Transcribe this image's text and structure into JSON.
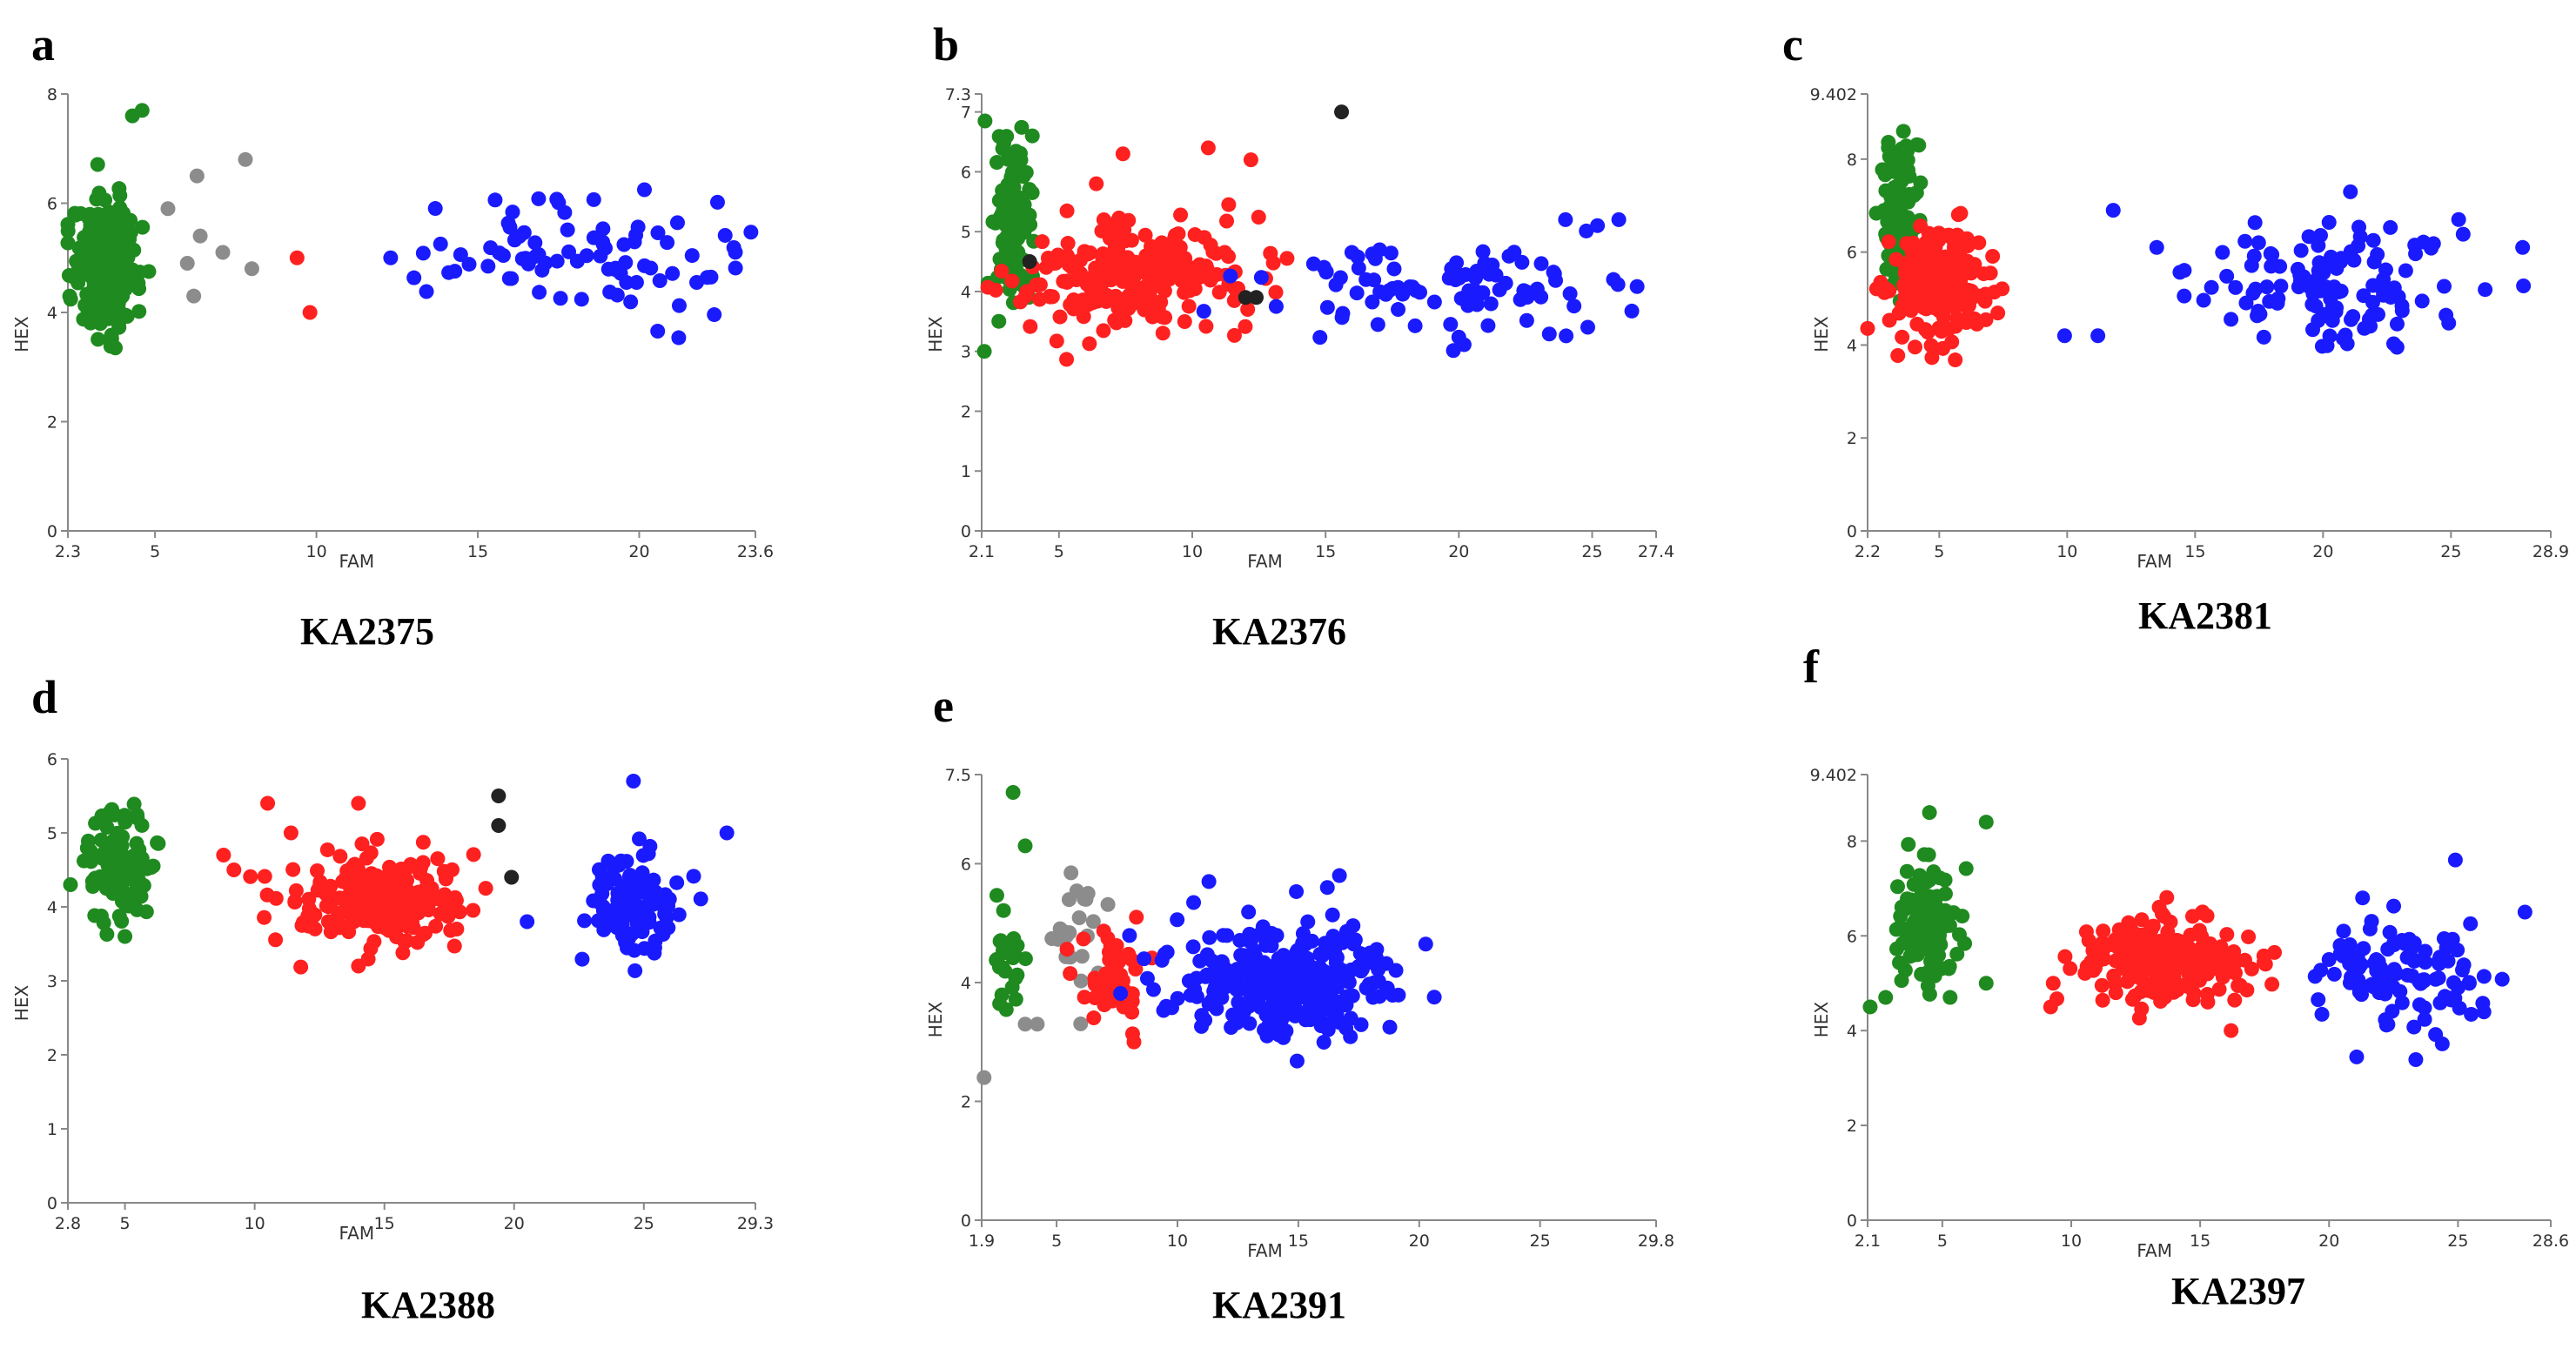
{
  "colors": {
    "green": "#1f8a1f",
    "red": "#ff2020",
    "blue": "#1a1aff",
    "gray": "#8c8c8c",
    "black": "#222222"
  },
  "panels": [
    {
      "letter": "a",
      "caption": "KA2375"
    },
    {
      "letter": "b",
      "caption": "KA2376"
    },
    {
      "letter": "c",
      "caption": "KA2381"
    },
    {
      "letter": "d",
      "caption": "KA2388"
    },
    {
      "letter": "e",
      "caption": "KA2391"
    },
    {
      "letter": "f",
      "caption": "KA2397"
    }
  ],
  "chart_data": [
    {
      "type": "scatter",
      "title": "KA2375",
      "xlabel": "FAM",
      "ylabel": "HEX",
      "xlim": [
        2.3,
        23.6
      ],
      "ylim": [
        0,
        8
      ],
      "xticks": [
        "2.3",
        "5",
        "10",
        "15",
        "20",
        "23.6"
      ],
      "yticks": [
        "0",
        "2",
        "4",
        "6",
        "8"
      ],
      "clusters": [
        {
          "name": "green",
          "color": "green",
          "n": 260,
          "cx": 3.5,
          "cy": 4.9,
          "sx": 0.5,
          "sy": 0.6
        },
        {
          "name": "blue",
          "color": "blue",
          "n": 85,
          "cx": 18.0,
          "cy": 5.0,
          "sx": 2.7,
          "sy": 0.55
        }
      ],
      "points": [
        {
          "x": 4.6,
          "y": 7.7,
          "c": "green"
        },
        {
          "x": 4.3,
          "y": 7.6,
          "c": "green"
        },
        {
          "x": 5.4,
          "y": 5.9,
          "c": "gray"
        },
        {
          "x": 6.3,
          "y": 6.5,
          "c": "gray"
        },
        {
          "x": 7.8,
          "y": 6.8,
          "c": "gray"
        },
        {
          "x": 6.4,
          "y": 5.4,
          "c": "gray"
        },
        {
          "x": 7.1,
          "y": 5.1,
          "c": "gray"
        },
        {
          "x": 6.0,
          "y": 4.9,
          "c": "gray"
        },
        {
          "x": 8.0,
          "y": 4.8,
          "c": "gray"
        },
        {
          "x": 6.2,
          "y": 4.3,
          "c": "gray"
        },
        {
          "x": 9.4,
          "y": 5.0,
          "c": "red"
        },
        {
          "x": 9.8,
          "y": 4.0,
          "c": "red"
        },
        {
          "x": 12.3,
          "y": 5.0,
          "c": "blue"
        }
      ]
    },
    {
      "type": "scatter",
      "title": "KA2376",
      "xlabel": "FAM",
      "ylabel": "HEX",
      "xlim": [
        2.1,
        27.4
      ],
      "ylim": [
        0,
        7.3
      ],
      "xticks": [
        "2.1",
        "5",
        "10",
        "15",
        "20",
        "25",
        "27.4"
      ],
      "yticks": [
        "0",
        "1",
        "2",
        "3",
        "4",
        "5",
        "6",
        "7",
        "7.3"
      ],
      "clusters": [
        {
          "name": "green",
          "color": "green",
          "n": 110,
          "cx": 3.2,
          "cy": 5.0,
          "sx": 0.35,
          "sy": 0.7
        },
        {
          "name": "red",
          "color": "red",
          "n": 270,
          "cx": 7.8,
          "cy": 4.3,
          "sx": 2.0,
          "sy": 0.45
        },
        {
          "name": "blue",
          "color": "blue",
          "n": 95,
          "cx": 19.0,
          "cy": 4.0,
          "sx": 3.5,
          "sy": 0.45
        }
      ],
      "points": [
        {
          "x": 2.2,
          "y": 3.0,
          "c": "green"
        },
        {
          "x": 4.0,
          "y": 6.6,
          "c": "green"
        },
        {
          "x": 3.9,
          "y": 4.5,
          "c": "black"
        },
        {
          "x": 12.0,
          "y": 3.9,
          "c": "black"
        },
        {
          "x": 12.4,
          "y": 3.9,
          "c": "black"
        },
        {
          "x": 15.6,
          "y": 7.0,
          "c": "black"
        },
        {
          "x": 7.4,
          "y": 6.3,
          "c": "red"
        },
        {
          "x": 10.6,
          "y": 6.4,
          "c": "red"
        },
        {
          "x": 12.2,
          "y": 6.2,
          "c": "red"
        },
        {
          "x": 6.4,
          "y": 5.8,
          "c": "red"
        },
        {
          "x": 26.0,
          "y": 5.2,
          "c": "blue"
        },
        {
          "x": 25.2,
          "y": 5.1,
          "c": "blue"
        },
        {
          "x": 24.0,
          "y": 5.2,
          "c": "blue"
        },
        {
          "x": 25.8,
          "y": 4.2,
          "c": "blue"
        }
      ]
    },
    {
      "type": "scatter",
      "title": "KA2381",
      "xlabel": "FAM",
      "ylabel": "HEX",
      "xlim": [
        2.2,
        28.9
      ],
      "ylim": [
        0,
        9.402
      ],
      "xticks": [
        "2.2",
        "5",
        "10",
        "15",
        "20",
        "25",
        "28.9"
      ],
      "yticks": [
        "0",
        "2",
        "4",
        "6",
        "8",
        "9.402"
      ],
      "clusters": [
        {
          "name": "green",
          "color": "green",
          "n": 110,
          "cx": 3.4,
          "cy": 6.8,
          "sx": 0.35,
          "sy": 0.8
        },
        {
          "name": "red",
          "color": "red",
          "n": 220,
          "cx": 5.0,
          "cy": 5.3,
          "sx": 1.0,
          "sy": 0.6
        },
        {
          "name": "blue",
          "color": "blue",
          "n": 120,
          "cx": 20.0,
          "cy": 5.2,
          "sx": 2.8,
          "sy": 0.7
        }
      ],
      "points": [
        {
          "x": 3.6,
          "y": 8.6,
          "c": "green"
        },
        {
          "x": 4.2,
          "y": 8.3,
          "c": "green"
        },
        {
          "x": 11.8,
          "y": 6.9,
          "c": "blue"
        },
        {
          "x": 25.3,
          "y": 6.7,
          "c": "blue"
        },
        {
          "x": 27.8,
          "y": 6.1,
          "c": "blue"
        },
        {
          "x": 9.9,
          "y": 4.2,
          "c": "blue"
        },
        {
          "x": 11.2,
          "y": 4.2,
          "c": "blue"
        },
        {
          "x": 13.5,
          "y": 6.1,
          "c": "blue"
        }
      ]
    },
    {
      "type": "scatter",
      "title": "KA2388",
      "xlabel": "FAM",
      "ylabel": "HEX",
      "xlim": [
        2.8,
        29.3
      ],
      "ylim": [
        0,
        6
      ],
      "xticks": [
        "2.8",
        "5",
        "10",
        "15",
        "20",
        "25",
        "29.3"
      ],
      "yticks": [
        "0",
        "1",
        "2",
        "3",
        "4",
        "5",
        "6"
      ],
      "clusters": [
        {
          "name": "green",
          "color": "green",
          "n": 110,
          "cx": 4.8,
          "cy": 4.55,
          "sx": 0.7,
          "sy": 0.35
        },
        {
          "name": "red",
          "color": "red",
          "n": 230,
          "cx": 15.0,
          "cy": 4.15,
          "sx": 1.6,
          "sy": 0.3
        },
        {
          "name": "blue",
          "color": "blue",
          "n": 110,
          "cx": 24.7,
          "cy": 4.05,
          "sx": 0.9,
          "sy": 0.35
        }
      ],
      "points": [
        {
          "x": 2.9,
          "y": 4.3,
          "c": "green"
        },
        {
          "x": 5.0,
          "y": 3.6,
          "c": "green"
        },
        {
          "x": 8.8,
          "y": 4.7,
          "c": "red"
        },
        {
          "x": 9.2,
          "y": 4.5,
          "c": "red"
        },
        {
          "x": 10.5,
          "y": 5.4,
          "c": "red"
        },
        {
          "x": 11.4,
          "y": 5.0,
          "c": "red"
        },
        {
          "x": 14.0,
          "y": 5.4,
          "c": "red"
        },
        {
          "x": 14.0,
          "y": 3.2,
          "c": "red"
        },
        {
          "x": 19.4,
          "y": 5.5,
          "c": "black"
        },
        {
          "x": 19.4,
          "y": 5.1,
          "c": "black"
        },
        {
          "x": 19.9,
          "y": 4.4,
          "c": "black"
        },
        {
          "x": 20.5,
          "y": 3.8,
          "c": "blue"
        },
        {
          "x": 24.6,
          "y": 5.7,
          "c": "blue"
        },
        {
          "x": 28.2,
          "y": 5.0,
          "c": "blue"
        }
      ]
    },
    {
      "type": "scatter",
      "title": "KA2391",
      "xlabel": "FAM",
      "ylabel": "HEX",
      "xlim": [
        1.9,
        29.8
      ],
      "ylim": [
        0,
        7.5
      ],
      "xticks": [
        "1.9",
        "5",
        "10",
        "15",
        "20",
        "25",
        "29.8"
      ],
      "yticks": [
        "0",
        "2",
        "4",
        "6",
        "7.5"
      ],
      "clusters": [
        {
          "name": "green",
          "color": "green",
          "n": 25,
          "cx": 3.1,
          "cy": 4.4,
          "sx": 0.4,
          "sy": 0.35
        },
        {
          "name": "gray",
          "color": "gray",
          "n": 22,
          "cx": 5.7,
          "cy": 4.6,
          "sx": 0.6,
          "sy": 0.45
        },
        {
          "name": "red",
          "color": "red",
          "n": 45,
          "cx": 7.3,
          "cy": 4.0,
          "sx": 0.7,
          "sy": 0.45
        },
        {
          "name": "blue",
          "color": "blue",
          "n": 330,
          "cx": 14.5,
          "cy": 4.0,
          "sx": 2.3,
          "sy": 0.45
        }
      ],
      "points": [
        {
          "x": 3.2,
          "y": 7.2,
          "c": "green"
        },
        {
          "x": 3.7,
          "y": 6.3,
          "c": "green"
        },
        {
          "x": 2.0,
          "y": 2.4,
          "c": "gray"
        },
        {
          "x": 3.7,
          "y": 3.3,
          "c": "gray"
        },
        {
          "x": 4.2,
          "y": 3.3,
          "c": "gray"
        },
        {
          "x": 6.3,
          "y": 5.5,
          "c": "gray"
        },
        {
          "x": 8.2,
          "y": 3.0,
          "c": "red"
        },
        {
          "x": 8.3,
          "y": 5.1,
          "c": "red"
        },
        {
          "x": 11.3,
          "y": 5.7,
          "c": "blue"
        },
        {
          "x": 16.7,
          "y": 5.8,
          "c": "blue"
        },
        {
          "x": 16.2,
          "y": 5.6,
          "c": "blue"
        }
      ]
    },
    {
      "type": "scatter",
      "title": "KA2397",
      "xlabel": "FAM",
      "ylabel": "HEX",
      "xlim": [
        2.1,
        28.6
      ],
      "ylim": [
        0,
        9.402
      ],
      "xticks": [
        "2.1",
        "5",
        "10",
        "15",
        "20",
        "25",
        "28.6"
      ],
      "yticks": [
        "0",
        "2",
        "4",
        "6",
        "8",
        "9.402"
      ],
      "clusters": [
        {
          "name": "green",
          "color": "green",
          "n": 120,
          "cx": 4.3,
          "cy": 6.2,
          "sx": 0.55,
          "sy": 0.6
        },
        {
          "name": "red",
          "color": "red",
          "n": 230,
          "cx": 13.5,
          "cy": 5.5,
          "sx": 1.5,
          "sy": 0.45
        },
        {
          "name": "blue",
          "color": "blue",
          "n": 110,
          "cx": 23.0,
          "cy": 5.1,
          "sx": 1.7,
          "sy": 0.55
        }
      ],
      "points": [
        {
          "x": 2.2,
          "y": 4.5,
          "c": "green"
        },
        {
          "x": 2.8,
          "y": 4.7,
          "c": "green"
        },
        {
          "x": 4.5,
          "y": 8.6,
          "c": "green"
        },
        {
          "x": 6.7,
          "y": 8.4,
          "c": "green"
        },
        {
          "x": 6.7,
          "y": 5.0,
          "c": "green"
        },
        {
          "x": 5.3,
          "y": 4.7,
          "c": "green"
        },
        {
          "x": 9.2,
          "y": 4.5,
          "c": "red"
        },
        {
          "x": 9.3,
          "y": 5.0,
          "c": "red"
        },
        {
          "x": 16.2,
          "y": 4.0,
          "c": "red"
        },
        {
          "x": 17.0,
          "y": 5.3,
          "c": "red"
        },
        {
          "x": 24.9,
          "y": 7.6,
          "c": "blue"
        },
        {
          "x": 27.6,
          "y": 6.5,
          "c": "blue"
        },
        {
          "x": 20.0,
          "y": 5.5,
          "c": "blue"
        },
        {
          "x": 21.3,
          "y": 6.8,
          "c": "blue"
        }
      ]
    }
  ]
}
